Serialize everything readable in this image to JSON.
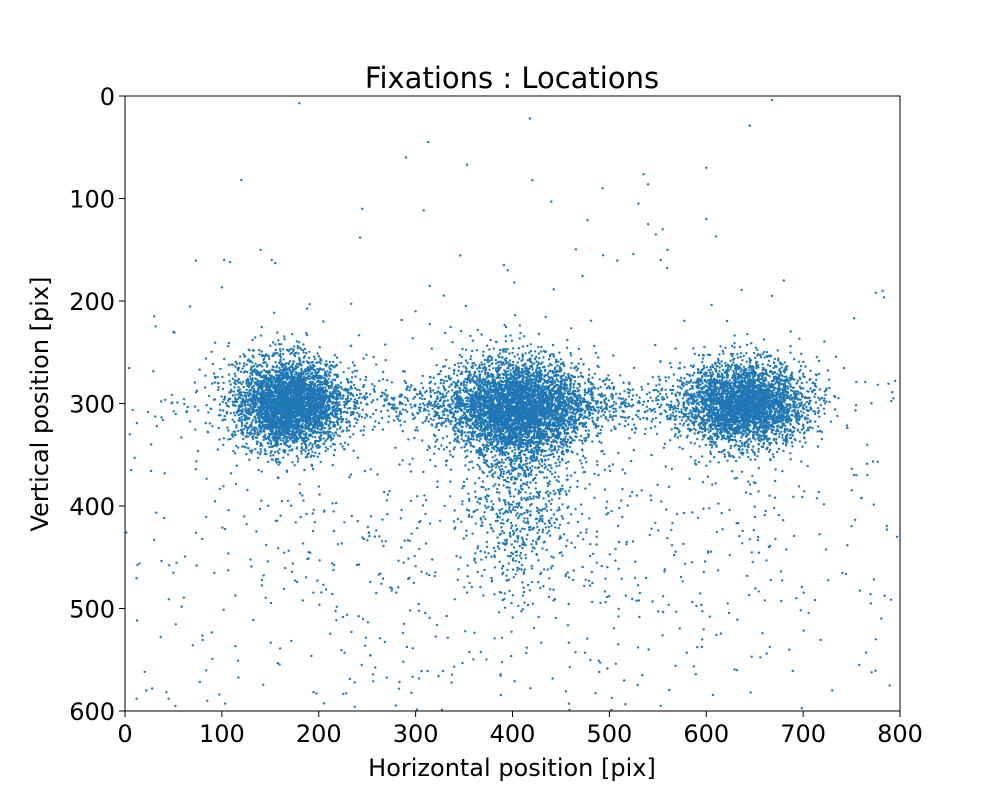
{
  "chart_data": {
    "type": "scatter",
    "title": "Fixations : Locations",
    "xlabel": "Horizontal position [pix]",
    "ylabel": "Vertical position [pix]",
    "xlim": [
      0,
      800
    ],
    "ylim": [
      0,
      600
    ],
    "y_inverted": true,
    "xticks": [
      "0",
      "100",
      "200",
      "300",
      "400",
      "500",
      "600",
      "700",
      "800"
    ],
    "yticks": [
      "0",
      "100",
      "200",
      "300",
      "400",
      "500",
      "600"
    ],
    "grid": false,
    "legend": "none",
    "point_color": "#1f77b4",
    "series": [
      {
        "points_description": "approximately 60000 fixation points",
        "clusters": [
          {
            "center_x": 170,
            "center_y": 300,
            "spread_x": 28,
            "spread_y": 22,
            "weight": 0.26
          },
          {
            "center_x": 405,
            "center_y": 305,
            "spread_x": 35,
            "spread_y": 24,
            "weight": 0.3
          },
          {
            "center_x": 640,
            "center_y": 300,
            "spread_x": 32,
            "spread_y": 20,
            "weight": 0.24
          },
          {
            "center_x": 400,
            "center_y": 300,
            "spread_x": 150,
            "spread_y": 12,
            "weight": 0.08
          },
          {
            "center_x": 405,
            "center_y": 400,
            "spread_x": 25,
            "spread_y": 40,
            "weight": 0.04
          },
          {
            "center_x": 400,
            "center_y": 420,
            "spread_x": 220,
            "spread_y": 110,
            "weight": 0.08
          }
        ],
        "sample_outliers": [
          [
            180,
            7
          ],
          [
            418,
            22
          ],
          [
            668,
            4
          ],
          [
            645,
            29
          ],
          [
            353,
            67
          ],
          [
            290,
            60
          ],
          [
            313,
            45
          ],
          [
            493,
            90
          ],
          [
            600,
            70
          ],
          [
            120,
            82
          ],
          [
            245,
            110
          ],
          [
            530,
            105
          ],
          [
            540,
            125
          ],
          [
            548,
            135
          ],
          [
            555,
            130
          ],
          [
            560,
            150
          ],
          [
            553,
            160
          ],
          [
            440,
            103
          ],
          [
            5,
            330
          ],
          [
            10,
            353
          ],
          [
            30,
            215
          ],
          [
            50,
            230
          ],
          [
            28,
            578
          ],
          [
            22,
            580
          ],
          [
            45,
            588
          ],
          [
            52,
            595
          ],
          [
            85,
            590
          ],
          [
            730,
            580
          ],
          [
            790,
            605
          ],
          [
            12,
            588
          ],
          [
            782,
            190
          ],
          [
            775,
            192
          ],
          [
            795,
            278
          ],
          [
            765,
            543
          ],
          [
            775,
            530
          ],
          [
            797,
            430
          ],
          [
            758,
            555
          ],
          [
            30,
            433
          ],
          [
            15,
            456
          ],
          [
            140,
            150
          ],
          [
            155,
            163
          ],
          [
            395,
            170
          ],
          [
            402,
            182
          ],
          [
            300,
            210
          ],
          [
            600,
            120
          ],
          [
            610,
            137
          ],
          [
            668,
            195
          ],
          [
            680,
            180
          ],
          [
            755,
            370
          ],
          [
            760,
            392
          ],
          [
            770,
            495
          ]
        ]
      }
    ]
  }
}
